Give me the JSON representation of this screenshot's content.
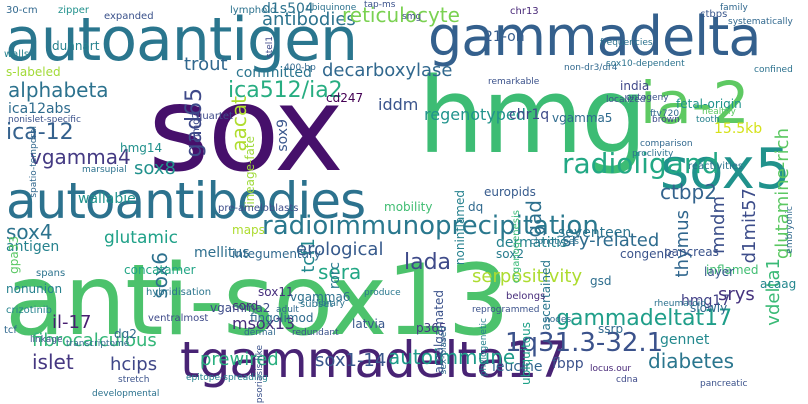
{
  "words": [
    {
      "text": "anti-sox13",
      "color": "#4cc26c"
    },
    {
      "text": "sox",
      "color": "#46106b"
    },
    {
      "text": "hmg",
      "color": "#3dbc74"
    },
    {
      "text": "autoantigen",
      "color": "#2a768e"
    },
    {
      "text": "gammadelta",
      "color": "#34608d"
    },
    {
      "text": "tgammadelta17",
      "color": "#482374"
    },
    {
      "text": "autoantibodies",
      "color": "#2c728e"
    },
    {
      "text": "ia-2",
      "color": "#5ec962"
    },
    {
      "text": "sox5",
      "color": "#20928c"
    },
    {
      "text": "radioimmunoprecipitation",
      "color": "#2a788e"
    },
    {
      "text": "radioligand",
      "color": "#22a884"
    },
    {
      "text": "gammadeltat17",
      "color": "#1f9e89"
    },
    {
      "text": "1q31.3-32.1",
      "color": "#3b528b"
    },
    {
      "text": "decarboxylase",
      "color": "#31688e"
    },
    {
      "text": "gad65",
      "color": "#3e4989"
    },
    {
      "text": "ica512/ia2",
      "color": "#27ad81"
    },
    {
      "text": "antibodies",
      "color": "#2c738e"
    },
    {
      "text": "reticulocyte",
      "color": "#7ad151"
    },
    {
      "text": "alphabeta",
      "color": "#2c728e"
    },
    {
      "text": "ica-12",
      "color": "#34618d"
    },
    {
      "text": "vgamma4",
      "color": "#443a83"
    },
    {
      "text": "sox8",
      "color": "#21918c"
    },
    {
      "text": "wallabie",
      "color": "#20928c"
    },
    {
      "text": "sox4",
      "color": "#2c738e"
    },
    {
      "text": "antigen",
      "color": "#26828e"
    },
    {
      "text": "glutamic",
      "color": "#1fa188"
    },
    {
      "text": "mellitus",
      "color": "#2e6f8e"
    },
    {
      "text": "lada",
      "color": "#3e4a89"
    },
    {
      "text": "sera",
      "color": "#22a785"
    },
    {
      "text": "tcf1",
      "color": "#23898e"
    },
    {
      "text": "erological",
      "color": "#375a8c"
    },
    {
      "text": "sox6",
      "color": "#2d718e"
    },
    {
      "text": "msox13",
      "color": "#472d7b"
    },
    {
      "text": "il-17",
      "color": "#481f71"
    },
    {
      "text": "fibrocalculous",
      "color": "#35b779"
    },
    {
      "text": "islet",
      "color": "#453781"
    },
    {
      "text": "hcips",
      "color": "#3f4788"
    },
    {
      "text": "prewired",
      "color": "#29af7f"
    },
    {
      "text": "sox1-14",
      "color": "#39568c"
    },
    {
      "text": "autoimmune",
      "color": "#1e9c89"
    },
    {
      "text": "leucine",
      "color": "#32658e"
    },
    {
      "text": "fbpp",
      "color": "#3b528b"
    },
    {
      "text": "diabetes",
      "color": "#2a768e"
    },
    {
      "text": "gad",
      "color": "#2d708e"
    },
    {
      "text": "seventeen",
      "color": "#2b748e"
    },
    {
      "text": "sry-related",
      "color": "#2f6c8e"
    },
    {
      "text": "serpositivity",
      "color": "#addc30"
    },
    {
      "text": "thymus",
      "color": "#31678e"
    },
    {
      "text": "srys",
      "color": "#46337e"
    },
    {
      "text": "hmg17",
      "color": "#424086"
    },
    {
      "text": "ctbp2",
      "color": "#33638d"
    },
    {
      "text": "mndm",
      "color": "#3c4f8a"
    },
    {
      "text": "d1mit57",
      "color": "#3d4d8a"
    },
    {
      "text": "glutamine-rich",
      "color": "#5cc863"
    },
    {
      "text": "trout",
      "color": "#31678e"
    },
    {
      "text": "iddm",
      "color": "#3a548c"
    },
    {
      "text": "regenotyped",
      "color": "#20938c"
    },
    {
      "text": "aacat",
      "color": "#b0dd2f"
    },
    {
      "text": "sox9",
      "color": "#39568c"
    },
    {
      "text": "chr1q",
      "color": "#3e4a89"
    },
    {
      "text": "dermatitis",
      "color": "#26828e"
    },
    {
      "text": "vdelta1",
      "color": "#3aba76"
    },
    {
      "text": "gennet",
      "color": "#23898e"
    },
    {
      "text": "rorc",
      "color": "#287c8e"
    },
    {
      "text": "d1s504",
      "color": "#2c728e"
    },
    {
      "text": "21-oh",
      "color": "#365c8d"
    },
    {
      "text": "india",
      "color": "#3f4889"
    },
    {
      "text": "15.5kb",
      "color": "#d5e21a"
    },
    {
      "text": "s-labeled",
      "color": "#a2da37"
    },
    {
      "text": "ica12abs",
      "color": "#2f6c8e"
    },
    {
      "text": "committed",
      "color": "#2b758e"
    },
    {
      "text": "cd247",
      "color": "#440154"
    },
    {
      "text": "hmg14",
      "color": "#21918c"
    },
    {
      "text": "europids",
      "color": "#375b8d"
    },
    {
      "text": "dq",
      "color": "#30698e"
    },
    {
      "text": "mobility",
      "color": "#40bd72"
    },
    {
      "text": "gpa33",
      "color": "#5ac864"
    },
    {
      "text": "maps",
      "color": "#addc30"
    },
    {
      "text": "integumentary",
      "color": "#31688e"
    },
    {
      "text": "concatamer",
      "color": "#21a585"
    },
    {
      "text": "nonunion",
      "color": "#26818e"
    },
    {
      "text": "sox11",
      "color": "#472f7d"
    },
    {
      "text": "cord",
      "color": "#472c7a"
    },
    {
      "text": "vgamma2",
      "color": "#3e4c8a"
    },
    {
      "text": "vgamma6",
      "color": "#2d708e"
    },
    {
      "text": "fingolimod",
      "color": "#2f6b8e"
    },
    {
      "text": "latvia",
      "color": "#38588c"
    },
    {
      "text": "p365",
      "color": "#443983"
    },
    {
      "text": "inflamed",
      "color": "#40bd72"
    },
    {
      "text": "gsd",
      "color": "#2e6e8e"
    },
    {
      "text": "layer",
      "color": "#38588c"
    },
    {
      "text": "slowly",
      "color": "#30698e"
    },
    {
      "text": "ssrp",
      "color": "#30698e"
    },
    {
      "text": "sox2",
      "color": "#287c8e"
    },
    {
      "text": "ubiquitous",
      "color": "#1fa188"
    },
    {
      "text": "dq2",
      "color": "#306a8e"
    },
    {
      "text": "dunnart",
      "color": "#26828e"
    },
    {
      "text": "pancreas",
      "color": "#3a538b"
    },
    {
      "text": "congenic",
      "color": "#3a538b"
    },
    {
      "text": "acaag",
      "color": "#24878e"
    },
    {
      "text": "fetal-origin",
      "color": "#20938c"
    },
    {
      "text": "ascertained",
      "color": "#2a788e"
    },
    {
      "text": "vgamma5",
      "color": "#2f6b8e"
    },
    {
      "text": "amalgamated",
      "color": "#3b528b"
    },
    {
      "text": "noninflamed",
      "color": "#26818e"
    },
    {
      "text": "lineage-fate",
      "color": "#9fda3a"
    },
    {
      "text": "pre-ameloblasts",
      "color": "#3d4e8a"
    },
    {
      "text": "spans",
      "color": "#2c738e"
    },
    {
      "text": "quartet",
      "color": "#3e4a89"
    },
    {
      "text": "hmg2",
      "color": "#3e4a89"
    },
    {
      "text": "organogenesis",
      "color": "#38b977"
    },
    {
      "text": "subset",
      "color": "#2a768e"
    },
    {
      "text": "belongs",
      "color": "#472d7b"
    },
    {
      "text": "crizotinib",
      "color": "#26828e"
    },
    {
      "text": "hybridisation",
      "color": "#2b758e"
    },
    {
      "text": "ventralmost",
      "color": "#3e4a89"
    },
    {
      "text": "tcf",
      "color": "#31688e"
    },
    {
      "text": "reactivities",
      "color": "#2c728e"
    },
    {
      "text": "walls",
      "color": "#26828e"
    },
    {
      "text": "30-cm",
      "color": "#31688e"
    },
    {
      "text": "zipper",
      "color": "#21918c"
    },
    {
      "text": "expanded",
      "color": "#3b528b"
    },
    {
      "text": "lymphoid",
      "color": "#2c728e"
    },
    {
      "text": "chr13",
      "color": "#482878"
    },
    {
      "text": "ctbps",
      "color": "#39568c"
    },
    {
      "text": "clonotypes",
      "color": "#2c728e"
    },
    {
      "text": "produce",
      "color": "#2a788e"
    },
    {
      "text": "ontogeny",
      "color": "#3b528b"
    },
    {
      "text": "comparison",
      "color": "#31688e"
    },
    {
      "text": "proclivity",
      "color": "#2c728e"
    },
    {
      "text": "ftv720",
      "color": "#31688e"
    },
    {
      "text": "healthy",
      "color": "#5ec962"
    },
    {
      "text": "tooth",
      "color": "#26828e"
    },
    {
      "text": "brown",
      "color": "#3e4a89"
    },
    {
      "text": "family",
      "color": "#31688e"
    },
    {
      "text": "confined",
      "color": "#2c728e"
    },
    {
      "text": "systematically",
      "color": "#31688e"
    },
    {
      "text": "linkage",
      "color": "#3b528b"
    },
    {
      "text": "transcriptome",
      "color": "#31688e"
    },
    {
      "text": "stretch",
      "color": "#3b528b"
    },
    {
      "text": "epitope-spreading",
      "color": "#26828e"
    },
    {
      "text": "developmental",
      "color": "#2c728e"
    },
    {
      "text": "pancreatic",
      "color": "#3b528b"
    },
    {
      "text": "cdna",
      "color": "#3e4a89"
    },
    {
      "text": "locus.our",
      "color": "#482878"
    },
    {
      "text": "nodes",
      "color": "#31688e"
    },
    {
      "text": "phylogenetic",
      "color": "#26828e"
    },
    {
      "text": "reprogrammed",
      "color": "#3b528b"
    },
    {
      "text": "adult",
      "color": "#31688e"
    },
    {
      "text": "library",
      "color": "#2c728e"
    },
    {
      "text": "dermal",
      "color": "#31688e"
    },
    {
      "text": "redundant",
      "color": "#3b528b"
    },
    {
      "text": "non-dr3/dr4",
      "color": "#31688e"
    },
    {
      "text": "sox10-dependent",
      "color": "#2c728e"
    },
    {
      "text": "remarkable",
      "color": "#3b528b"
    },
    {
      "text": "400-bp",
      "color": "#31688e"
    },
    {
      "text": "stel1",
      "color": "#3e4a89"
    },
    {
      "text": "rheumatoid",
      "color": "#2c728e"
    },
    {
      "text": "nonislet-specific",
      "color": "#3b528b"
    },
    {
      "text": "spatio-temporal",
      "color": "#31688e"
    },
    {
      "text": "psoriasis-like",
      "color": "#3b528b"
    },
    {
      "text": "marsupial",
      "color": "#2c728e"
    },
    {
      "text": "sex-biased",
      "color": "#31688e"
    },
    {
      "text": "frequencies",
      "color": "#2c728e"
    },
    {
      "text": "localized",
      "color": "#3b528b"
    },
    {
      "text": "embryonic",
      "color": "#31688e"
    },
    {
      "text": "ubiquinone",
      "color": "#2c728e"
    },
    {
      "text": "tap-ms",
      "color": "#3b528b"
    },
    {
      "text": "smg",
      "color": "#3e4a89"
    }
  ]
}
